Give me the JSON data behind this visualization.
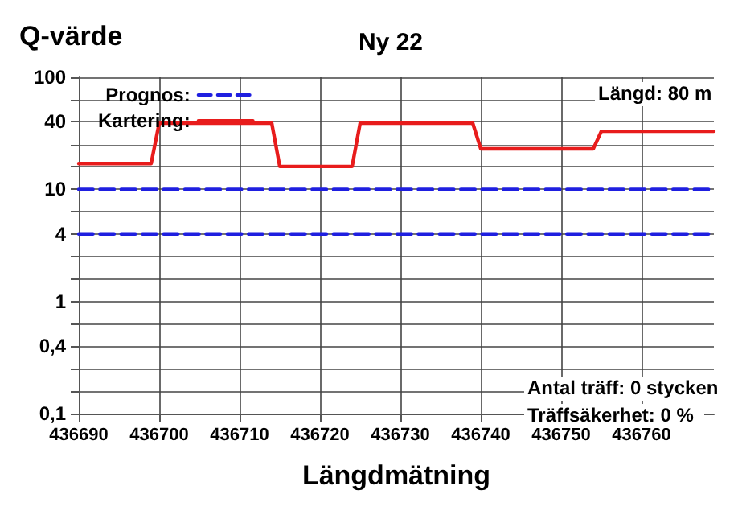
{
  "chart_data": {
    "type": "line",
    "title": "Ny 22",
    "ylabel": "Q-värde",
    "xlabel": "Längdmätning",
    "log": "y",
    "grid": true,
    "legend": "top left",
    "marker": "none",
    "xlim": [
      436690,
      436769
    ],
    "xticks": [
      436690,
      436700,
      436710,
      436720,
      436730,
      436740,
      436750,
      436760
    ],
    "ylim": [
      0.1,
      100
    ],
    "yticks": [
      {
        "value": 0.1,
        "label": "0,1"
      },
      {
        "value": 0.16,
        "label": null
      },
      {
        "value": 0.25,
        "label": null
      },
      {
        "value": 0.4,
        "label": "0,4"
      },
      {
        "value": 0.63,
        "label": null
      },
      1,
      {
        "value": 1.6,
        "label": null
      },
      {
        "value": 2.5,
        "label": null
      },
      4,
      {
        "value": 6.3,
        "label": null
      },
      10,
      {
        "value": 16,
        "label": null
      },
      {
        "value": 25,
        "label": null
      },
      40,
      {
        "value": 63,
        "label": null
      },
      100
    ],
    "series": [
      {
        "name": "Prognos:",
        "color": "#1f1fe0",
        "line_style": "dashed",
        "x": [
          436690,
          436769
        ],
        "values": [
          10,
          10
        ]
      },
      {
        "color": "#1f1fe0",
        "line_style": "dashed",
        "x": [
          436690,
          436769
        ],
        "values": [
          4,
          4
        ]
      },
      {
        "name": "Kartering:",
        "color": "#e81c1c",
        "line_style": "solid",
        "x": [
          436690,
          436699,
          436700,
          436714,
          436715,
          436724,
          436725,
          436739,
          436740,
          436754,
          436755,
          436769
        ],
        "values": [
          17,
          17,
          39,
          39,
          16,
          16,
          39,
          39,
          23,
          23,
          33,
          33
        ]
      }
    ],
    "annotations": [
      "Längd: 80 m",
      "Antal träff: 0 stycken",
      "Träffsäkerhet: 0 %"
    ]
  }
}
